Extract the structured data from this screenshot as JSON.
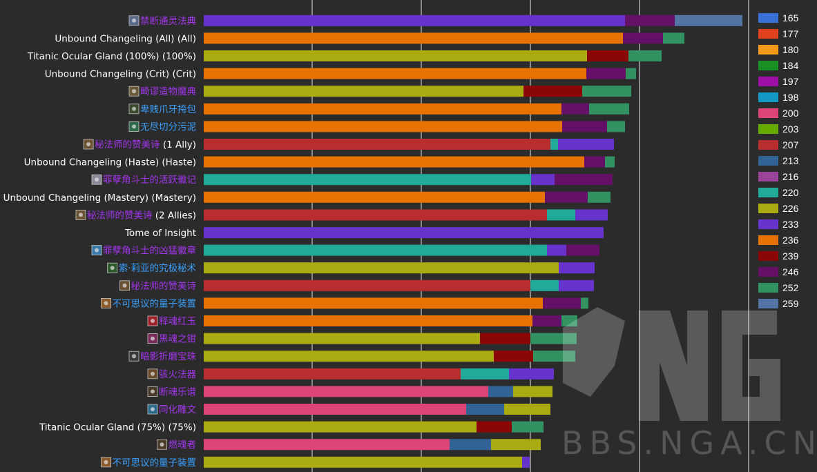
{
  "chart_data": {
    "type": "bar",
    "stacked": true,
    "orientation": "horizontal",
    "x_axis_gridlines": true,
    "legend": {
      "placement": "right",
      "items": [
        {
          "label": "165",
          "color": "#3a6fd6"
        },
        {
          "label": "177",
          "color": "#e0421e"
        },
        {
          "label": "180",
          "color": "#f39a19"
        },
        {
          "label": "184",
          "color": "#1a8f26"
        },
        {
          "label": "197",
          "color": "#9e0fa6"
        },
        {
          "label": "198",
          "color": "#1499c7"
        },
        {
          "label": "200",
          "color": "#dd4477"
        },
        {
          "label": "203",
          "color": "#66aa00"
        },
        {
          "label": "207",
          "color": "#b82e2e"
        },
        {
          "label": "213",
          "color": "#316395"
        },
        {
          "label": "216",
          "color": "#994499"
        },
        {
          "label": "220",
          "color": "#22aa99"
        },
        {
          "label": "226",
          "color": "#aaaa11"
        },
        {
          "label": "233",
          "color": "#6633cc"
        },
        {
          "label": "236",
          "color": "#e67300"
        },
        {
          "label": "239",
          "color": "#8b0707"
        },
        {
          "label": "246",
          "color": "#651067"
        },
        {
          "label": "252",
          "color": "#329262"
        },
        {
          "label": "259",
          "color": "#5574a6"
        }
      ]
    },
    "rows": [
      {
        "label": "禁断通灵法典",
        "label_color": "#a335ee",
        "icon": "book-icon",
        "icon_bg": "#5a6a8a",
        "segments": [
          {
            "level": "233",
            "value": 610
          },
          {
            "level": "246",
            "value": 72
          },
          {
            "level": "259",
            "value": 98
          }
        ]
      },
      {
        "label": "Unbound Changeling (All) (All)",
        "label_color": "#ffffff",
        "segments": [
          {
            "level": "236",
            "value": 607
          },
          {
            "level": "246",
            "value": 58
          },
          {
            "level": "252",
            "value": 31
          }
        ]
      },
      {
        "label": "Titanic Ocular Gland (100%) (100%)",
        "label_color": "#ffffff",
        "segments": [
          {
            "level": "226",
            "value": 555
          },
          {
            "level": "239",
            "value": 60
          },
          {
            "level": "252",
            "value": 48
          }
        ]
      },
      {
        "label": "Unbound Changeling (Crit) (Crit)",
        "label_color": "#ffffff",
        "segments": [
          {
            "level": "236",
            "value": 554
          },
          {
            "level": "246",
            "value": 57
          },
          {
            "level": "252",
            "value": 15
          }
        ]
      },
      {
        "label": "畸谬造物魔典",
        "label_color": "#a335ee",
        "icon": "book-icon",
        "icon_bg": "#6b5a3a",
        "segments": [
          {
            "level": "226",
            "value": 463
          },
          {
            "level": "239",
            "value": 85
          },
          {
            "level": "252",
            "value": 71
          }
        ]
      },
      {
        "label": "卑贱爪牙挎包",
        "label_color": "#3aa0ff",
        "icon": "bag-icon",
        "icon_bg": "#3a4a2a",
        "segments": [
          {
            "level": "236",
            "value": 518
          },
          {
            "level": "246",
            "value": 40
          },
          {
            "level": "252",
            "value": 58
          }
        ]
      },
      {
        "label": "无尽切分污泥",
        "label_color": "#3aa0ff",
        "icon": "vial-icon",
        "icon_bg": "#2e6a4a",
        "segments": [
          {
            "level": "236",
            "value": 519
          },
          {
            "level": "246",
            "value": 65
          },
          {
            "level": "252",
            "value": 26
          }
        ]
      },
      {
        "label": "秘法师的赞美诗",
        "suffix": " (1 Ally)",
        "label_color": "#a335ee",
        "icon": "chest-icon",
        "icon_bg": "#6a5232",
        "segments": [
          {
            "level": "207",
            "value": 502
          },
          {
            "level": "220",
            "value": 11
          },
          {
            "level": "233",
            "value": 81
          }
        ]
      },
      {
        "label": "Unbound Changeling (Haste) (Haste)",
        "label_color": "#ffffff",
        "segments": [
          {
            "level": "236",
            "value": 551
          },
          {
            "level": "246",
            "value": 30
          },
          {
            "level": "252",
            "value": 14
          }
        ]
      },
      {
        "label": "罪孽角斗士的活跃徽记",
        "label_color": "#a335ee",
        "icon": "badge-icon",
        "icon_bg": "#8a8a9a",
        "segments": [
          {
            "level": "220",
            "value": 474
          },
          {
            "level": "233",
            "value": 34
          },
          {
            "level": "246",
            "value": 84
          }
        ]
      },
      {
        "label": "Unbound Changeling (Mastery) (Mastery)",
        "label_color": "#ffffff",
        "segments": [
          {
            "level": "236",
            "value": 494
          },
          {
            "level": "246",
            "value": 62
          },
          {
            "level": "252",
            "value": 33
          }
        ]
      },
      {
        "label": "秘法师的赞美诗",
        "suffix": " (2 Allies)",
        "label_color": "#a335ee",
        "icon": "chest-icon",
        "icon_bg": "#6a5232",
        "segments": [
          {
            "level": "207",
            "value": 497
          },
          {
            "level": "220",
            "value": 41
          },
          {
            "level": "233",
            "value": 47
          }
        ]
      },
      {
        "label": "Tome of Insight",
        "label_color": "#ffffff",
        "segments": [
          {
            "level": "233",
            "value": 579
          }
        ]
      },
      {
        "label": "罪孽角斗士的凶猛徽章",
        "label_color": "#a335ee",
        "icon": "badge-icon",
        "icon_bg": "#3a7aa8",
        "segments": [
          {
            "level": "220",
            "value": 497
          },
          {
            "level": "233",
            "value": 28
          },
          {
            "level": "246",
            "value": 48
          }
        ]
      },
      {
        "label": "索·莉亚的究极秘术",
        "label_color": "#3aa0ff",
        "icon": "orb-icon",
        "icon_bg": "#2a5a2a",
        "segments": [
          {
            "level": "226",
            "value": 514
          },
          {
            "level": "233",
            "value": 52
          }
        ]
      },
      {
        "label": "秘法师的赞美诗",
        "label_color": "#a335ee",
        "icon": "chest-icon",
        "icon_bg": "#6a5232",
        "segments": [
          {
            "level": "207",
            "value": 473
          },
          {
            "level": "220",
            "value": 41
          },
          {
            "level": "233",
            "value": 51
          }
        ]
      },
      {
        "label": "不可思议的量子装置",
        "label_color": "#3aa0ff",
        "icon": "device-icon",
        "icon_bg": "#8a5a2a",
        "segments": [
          {
            "level": "236",
            "value": 491
          },
          {
            "level": "246",
            "value": 55
          },
          {
            "level": "252",
            "value": 11
          }
        ]
      },
      {
        "label": "释魂红玉",
        "label_color": "#a335ee",
        "icon": "gem-icon",
        "icon_bg": "#a0202a",
        "segments": [
          {
            "level": "236",
            "value": 476
          },
          {
            "level": "246",
            "value": 42
          },
          {
            "level": "252",
            "value": 23
          }
        ]
      },
      {
        "label": "黑魂之钳",
        "label_color": "#a335ee",
        "icon": "claw-icon",
        "icon_bg": "#7a2a5a",
        "segments": [
          {
            "level": "226",
            "value": 400
          },
          {
            "level": "239",
            "value": 73
          },
          {
            "level": "252",
            "value": 67
          }
        ]
      },
      {
        "label": "暗影折磨宝珠",
        "label_color": "#a335ee",
        "icon": "orb-icon",
        "icon_bg": "#3a3a3a",
        "segments": [
          {
            "level": "226",
            "value": 420
          },
          {
            "level": "239",
            "value": 57
          },
          {
            "level": "252",
            "value": 61
          }
        ]
      },
      {
        "label": "骇火法器",
        "label_color": "#a335ee",
        "icon": "skull-icon",
        "icon_bg": "#6a4a2a",
        "segments": [
          {
            "level": "207",
            "value": 372
          },
          {
            "level": "220",
            "value": 70
          },
          {
            "level": "233",
            "value": 65
          }
        ]
      },
      {
        "label": "断魂乐谱",
        "label_color": "#a335ee",
        "icon": "scroll-icon",
        "icon_bg": "#4a3a2a",
        "segments": [
          {
            "level": "200",
            "value": 412
          },
          {
            "level": "213",
            "value": 36
          },
          {
            "level": "226",
            "value": 57
          }
        ]
      },
      {
        "label": "同化雕文",
        "label_color": "#a335ee",
        "icon": "glyph-icon",
        "icon_bg": "#2a6a8a",
        "segments": [
          {
            "level": "200",
            "value": 380
          },
          {
            "level": "213",
            "value": 55
          },
          {
            "level": "226",
            "value": 67
          }
        ]
      },
      {
        "label": "Titanic Ocular Gland (75%) (75%)",
        "label_color": "#ffffff",
        "segments": [
          {
            "level": "226",
            "value": 395
          },
          {
            "level": "239",
            "value": 51
          },
          {
            "level": "252",
            "value": 46
          }
        ]
      },
      {
        "label": "燃魂者",
        "label_color": "#a335ee",
        "icon": "dagger-icon",
        "icon_bg": "#4a3a2a",
        "segments": [
          {
            "level": "200",
            "value": 356
          },
          {
            "level": "213",
            "value": 60
          },
          {
            "level": "226",
            "value": 72
          }
        ]
      },
      {
        "label": "不可思议的量子装置",
        "label_color": "#3aa0ff",
        "icon": "device-icon",
        "icon_bg": "#8a5a2a",
        "segments": [
          {
            "level": "226",
            "value": 461
          },
          {
            "level": "233",
            "value": 11
          }
        ]
      }
    ]
  },
  "watermark": {
    "text": "BBS.NGA.CN"
  }
}
